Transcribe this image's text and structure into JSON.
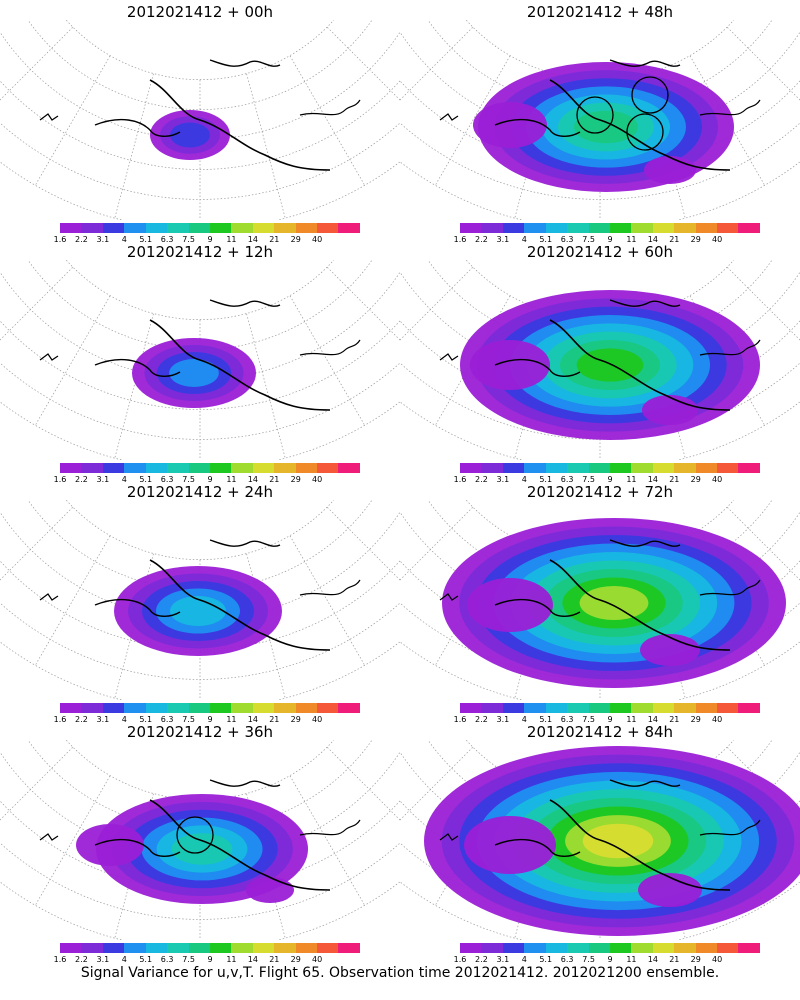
{
  "caption": "Signal Variance for u,v,T. Flight 65. Observation time 2012021412. 2012021200 ensemble.",
  "colorbar": {
    "labels": [
      "1.6",
      "2.2",
      "3.1",
      "4",
      "5.1",
      "6.3",
      "7.5",
      "9",
      "11",
      "14",
      "21",
      "29",
      "40"
    ],
    "colors": [
      "#9b1fd6",
      "#7d2ad9",
      "#3a3ae0",
      "#1f8ff0",
      "#18b8e0",
      "#19c9b0",
      "#19c880",
      "#1ec820",
      "#a0dc30",
      "#d7dd30",
      "#e5b52a",
      "#f08a28",
      "#f45838",
      "#f01c7a"
    ]
  },
  "panels": [
    {
      "title": "2012021412 + 00h",
      "level": 0,
      "circles": 0
    },
    {
      "title": "2012021412 + 48h",
      "level": 4,
      "circles": 3
    },
    {
      "title": "2012021412 + 12h",
      "level": 1,
      "circles": 0
    },
    {
      "title": "2012021412 + 60h",
      "level": 5,
      "circles": 0
    },
    {
      "title": "2012021412 + 24h",
      "level": 2,
      "circles": 0
    },
    {
      "title": "2012021412 + 72h",
      "level": 6,
      "circles": 0
    },
    {
      "title": "2012021412 + 36h",
      "level": 3,
      "circles": 1
    },
    {
      "title": "2012021412 + 84h",
      "level": 7,
      "circles": 0
    }
  ]
}
